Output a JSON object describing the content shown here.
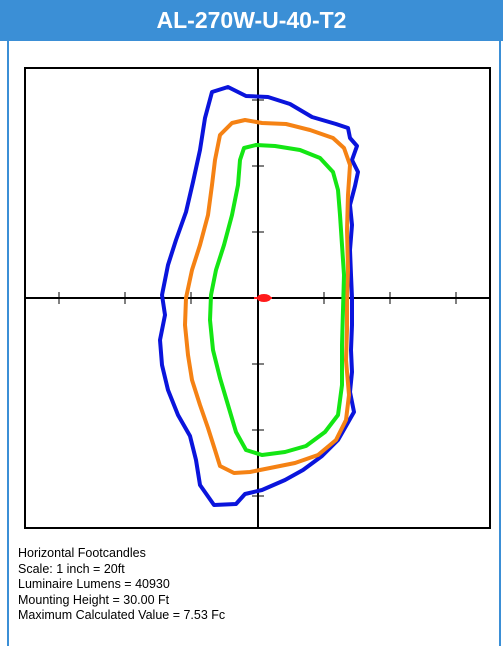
{
  "header": {
    "title": "AL-270W-U-40-T2"
  },
  "caption": {
    "line1": "Horizontal Footcandles",
    "line2": "Scale: 1 inch = 20ft",
    "line3": "Luminaire Lumens = 40930",
    "line4": "Mounting Height = 30.00 Ft",
    "line5": "Maximum Calculated Value = 7.53 Fc"
  },
  "colors": {
    "header_bg": "#3b8fd6",
    "contour_outer": "#0a14dc",
    "contour_middle": "#f58214",
    "contour_inner": "#14e614",
    "luminaire_marker": "#ff1a1a"
  },
  "diagram": {
    "type": "isofootcandle-plot",
    "contours": [
      {
        "name": "outer",
        "color_key": "contour_outer"
      },
      {
        "name": "middle",
        "color_key": "contour_middle"
      },
      {
        "name": "inner",
        "color_key": "contour_inner"
      }
    ]
  }
}
